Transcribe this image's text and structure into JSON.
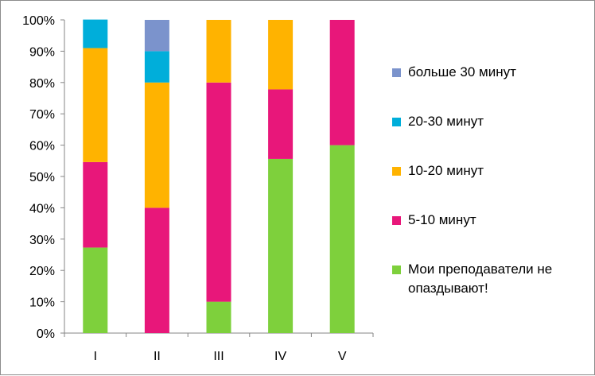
{
  "chart_data": {
    "type": "bar",
    "stacked": "percent",
    "categories": [
      "I",
      "II",
      "III",
      "IV",
      "V"
    ],
    "y_ticks": [
      "0%",
      "10%",
      "20%",
      "30%",
      "40%",
      "50%",
      "60%",
      "70%",
      "80%",
      "90%",
      "100%"
    ],
    "ylim": [
      0,
      100
    ],
    "series": [
      {
        "name": "Мои преподаватели не опаздывают!",
        "color": "#7ed03c",
        "values": [
          27.3,
          0,
          10,
          55.6,
          60
        ]
      },
      {
        "name": "5-10 минут",
        "color": "#e8177a",
        "values": [
          27.3,
          40,
          70,
          22.2,
          40
        ]
      },
      {
        "name": "10-20 минут",
        "color": "#ffb300",
        "values": [
          36.4,
          40,
          20,
          22.2,
          0
        ]
      },
      {
        "name": "20-30 минут",
        "color": "#00aeda",
        "values": [
          9.1,
          10,
          0,
          0,
          0
        ]
      },
      {
        "name": "больше 30 минут",
        "color": "#7b93cc",
        "values": [
          0,
          10,
          0,
          0,
          0
        ]
      }
    ],
    "legend_position": "right",
    "legend_order": [
      "больше 30 минут",
      "20-30 минут",
      "10-20 минут",
      "5-10 минут",
      "Мои преподаватели не опаздывают!"
    ]
  }
}
